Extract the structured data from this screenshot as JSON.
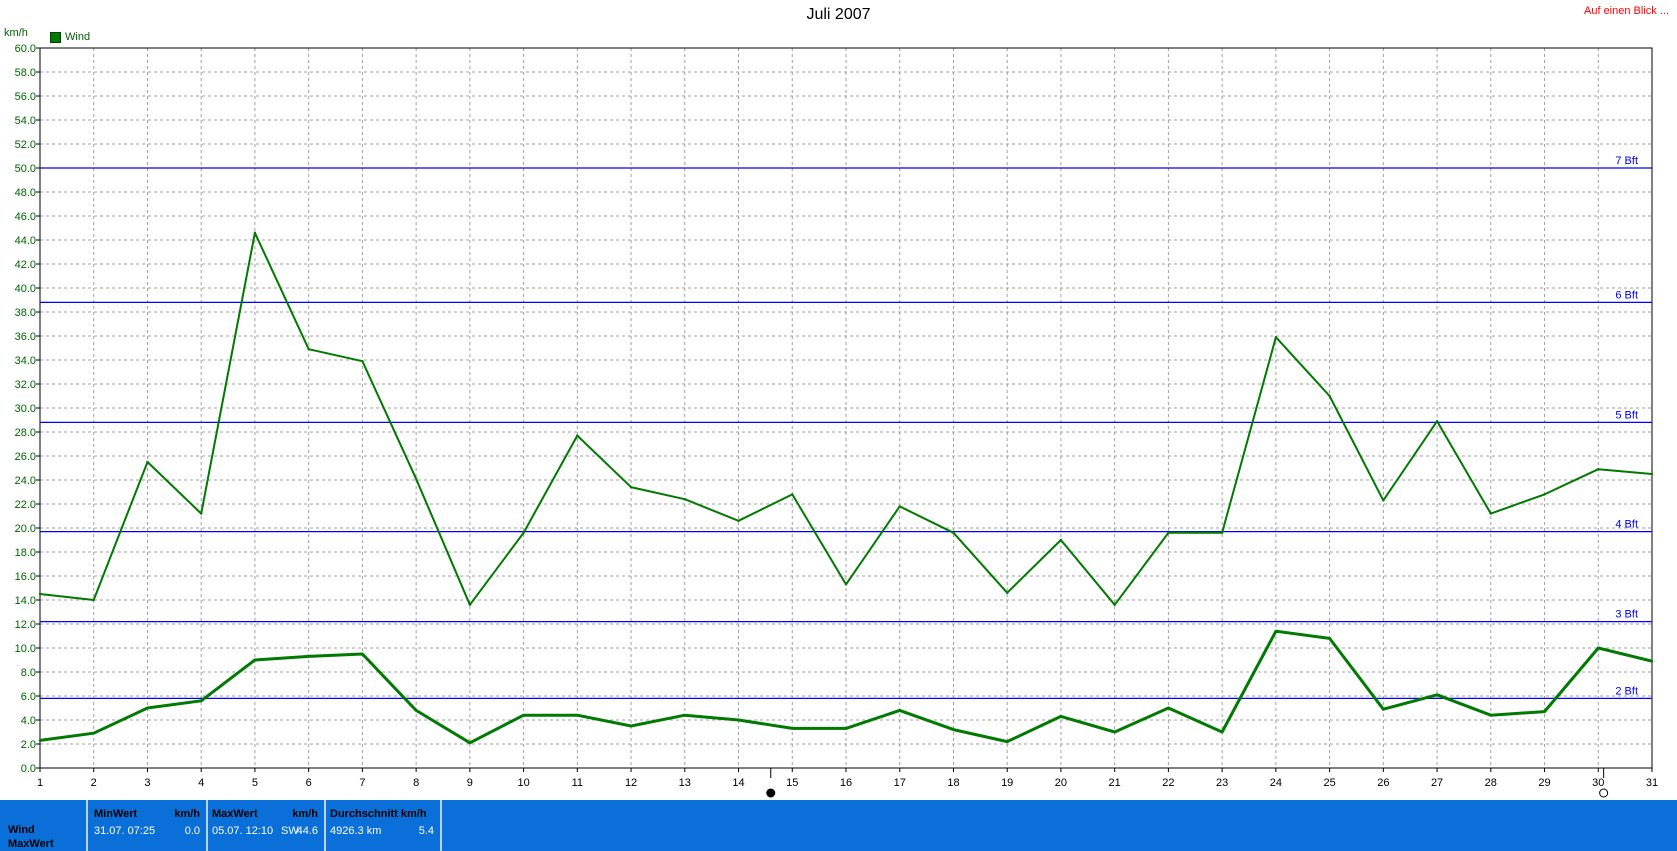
{
  "title": "Juli 2007",
  "link": "Auf einen Blick ...",
  "chart_data": {
    "type": "line",
    "ylabel": "km/h",
    "ylim": [
      0,
      60
    ],
    "yticks": [
      "0.0",
      "2.0",
      "4.0",
      "6.0",
      "8.0",
      "10.0",
      "12.0",
      "14.0",
      "16.0",
      "18.0",
      "20.0",
      "22.0",
      "24.0",
      "26.0",
      "28.0",
      "30.0",
      "32.0",
      "34.0",
      "36.0",
      "38.0",
      "40.0",
      "42.0",
      "44.0",
      "46.0",
      "48.0",
      "50.0",
      "52.0",
      "54.0",
      "56.0",
      "58.0",
      "60.0"
    ],
    "x": [
      "1",
      "2",
      "3",
      "4",
      "5",
      "6",
      "7",
      "8",
      "9",
      "10",
      "11",
      "12",
      "13",
      "14",
      "15",
      "16",
      "17",
      "18",
      "19",
      "20",
      "21",
      "22",
      "23",
      "24",
      "25",
      "26",
      "27",
      "28",
      "29",
      "30",
      "31"
    ],
    "grid": true,
    "legend_position": "top-left",
    "series": [
      {
        "name": "Wind",
        "color": "#007a00",
        "values": [
          14.5,
          14.0,
          25.5,
          21.2,
          44.6,
          34.9,
          33.9,
          24.1,
          13.6,
          19.6,
          27.7,
          23.4,
          22.4,
          20.6,
          22.8,
          15.3,
          21.8,
          19.6,
          14.6,
          19.0,
          13.6,
          19.6,
          19.6,
          35.9,
          31.0,
          22.3,
          28.9,
          21.2,
          22.8,
          24.9,
          24.5
        ]
      },
      {
        "name": "",
        "color": "#007a00",
        "values": [
          2.3,
          2.9,
          5.0,
          5.6,
          9.0,
          9.3,
          9.5,
          4.8,
          2.1,
          4.4,
          4.4,
          3.5,
          4.4,
          4.0,
          3.3,
          3.3,
          4.8,
          3.2,
          2.2,
          4.3,
          3.0,
          5.0,
          3.0,
          11.4,
          10.8,
          4.9,
          6.1,
          4.4,
          4.7,
          10.0,
          8.9
        ]
      }
    ],
    "reference_lines": [
      {
        "label": "2 Bft",
        "value": 5.8,
        "color": "#0000ff"
      },
      {
        "label": "3 Bft",
        "value": 12.2,
        "color": "#0000ff"
      },
      {
        "label": "4 Bft",
        "value": 19.7,
        "color": "#0000ff"
      },
      {
        "label": "5 Bft",
        "value": 28.8,
        "color": "#0000ff"
      },
      {
        "label": "6 Bft",
        "value": 38.8,
        "color": "#0000ff"
      },
      {
        "label": "7 Bft",
        "value": 50.0,
        "color": "#0000ff"
      }
    ],
    "markers": [
      {
        "x": 14.6,
        "type": "new-moon"
      },
      {
        "x": 30.1,
        "type": "full-moon"
      }
    ]
  },
  "stats": {
    "row_labels": [
      "Wind",
      "MaxWert"
    ],
    "min": {
      "header": "MinWert",
      "unit": "km/h",
      "datetime": "31.07.  07:25",
      "value": "0.0"
    },
    "max": {
      "header": "MaxWert",
      "unit": "km/h",
      "datetime": "05.07.  12:10",
      "dir": "SW",
      "value": "44.6"
    },
    "avg": {
      "header": "Durchschnitt km/h",
      "distance": "4926.3 km",
      "value": "5.4"
    }
  }
}
